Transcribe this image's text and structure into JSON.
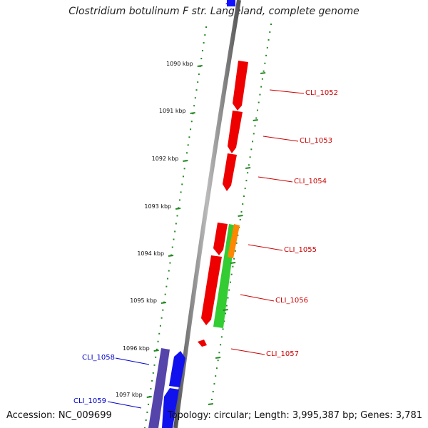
{
  "title": "Clostridium botulinum F str. Langeland, complete genome",
  "footer": {
    "accession": "Accession: NC_009699",
    "topology": "Topology: circular; Length: 3,995,387 bp; Genes: 3,781"
  },
  "scale_ticks": [
    {
      "label": "1090 kbp"
    },
    {
      "label": "1091 kbp"
    },
    {
      "label": "1092 kbp"
    },
    {
      "label": "1093 kbp"
    },
    {
      "label": "1094 kbp"
    },
    {
      "label": "1095 kbp"
    },
    {
      "label": "1096 kbp"
    },
    {
      "label": "1097 kbp"
    }
  ],
  "genes": [
    {
      "label": "CLI_1052",
      "strand": "forward",
      "color": "#cc0000"
    },
    {
      "label": "CLI_1053",
      "strand": "forward",
      "color": "#cc0000"
    },
    {
      "label": "CLI_1054",
      "strand": "forward",
      "color": "#cc0000"
    },
    {
      "label": "CLI_1055",
      "strand": "forward",
      "color": "#cc0000"
    },
    {
      "label": "CLI_1056",
      "strand": "forward",
      "color": "#cc0000"
    },
    {
      "label": "CLI_1057",
      "strand": "forward",
      "color": "#cc0000"
    },
    {
      "label": "CLI_1058",
      "strand": "reverse",
      "color": "#0000cc"
    },
    {
      "label": "CLI_1059",
      "strand": "reverse",
      "color": "#0000cc"
    }
  ],
  "colors": {
    "forward_feature": "#ff0000",
    "reverse_feature": "#0000ff",
    "green_feature": "#33cc33",
    "orange_feature": "#ff8800",
    "purple_feature": "#5544aa",
    "backbone": "#888888",
    "scale_dots": "#228822"
  }
}
